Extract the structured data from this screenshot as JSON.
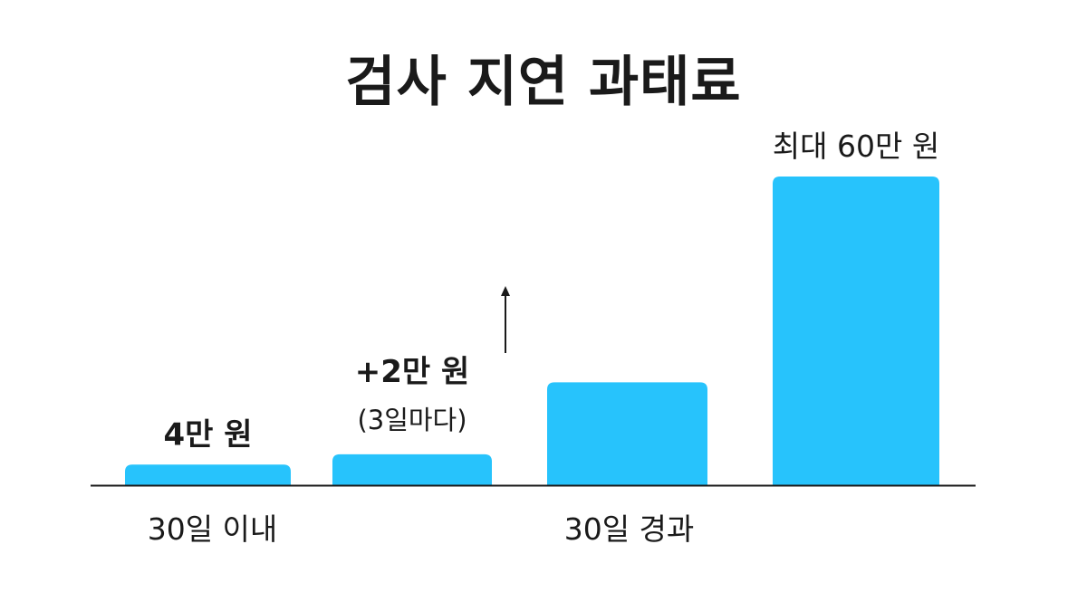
{
  "chart_data": {
    "type": "bar",
    "title": "검사 지연 과태료",
    "unit": "만 원",
    "categories": [
      "30일 이내",
      "",
      "30일 경과",
      ""
    ],
    "values": [
      4,
      6,
      20,
      60
    ],
    "data_labels": [
      "4만 원",
      "+2만 원",
      "",
      "최대 60만 원"
    ],
    "data_label_notes": [
      "",
      "(3일마다)",
      "",
      ""
    ],
    "x_group_labels": [
      "30일 이내",
      "30일 경과"
    ],
    "bar_color": "#27c3fc",
    "ylim": [
      0,
      60
    ],
    "arrow_after_bar": 1,
    "grid": false
  }
}
